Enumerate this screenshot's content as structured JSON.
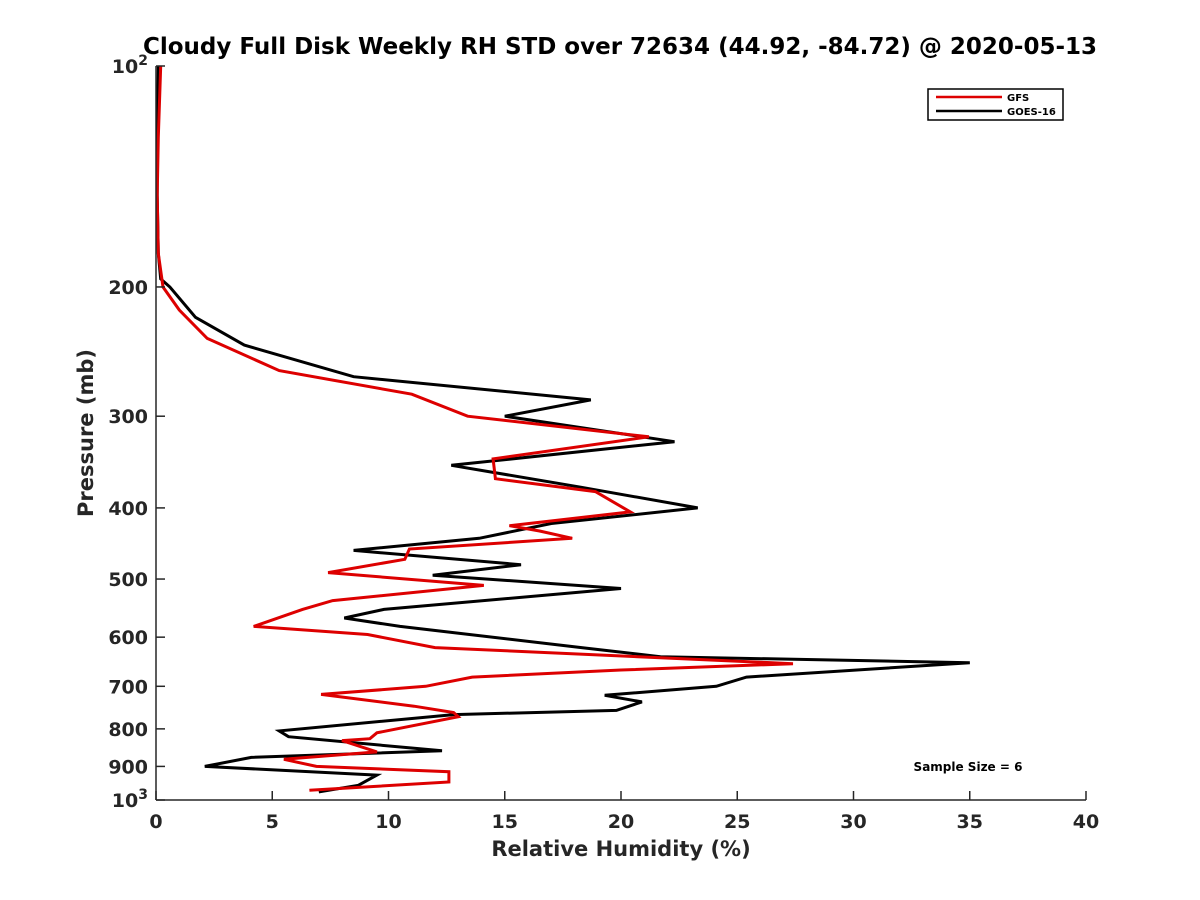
{
  "chart_data": {
    "type": "line",
    "title": "Cloudy Full Disk Weekly RH STD over 72634 (44.92, -84.72) @ 2020-05-13",
    "xlabel": "Relative Humidity (%)",
    "ylabel": "Pressure (mb)",
    "xlim": [
      0,
      40
    ],
    "ylim": [
      100,
      1000
    ],
    "y_scale": "log",
    "y_reversed": true,
    "grid": false,
    "legend_position": "top-right",
    "x_ticks": [
      0,
      5,
      10,
      15,
      20,
      25,
      30,
      35,
      40
    ],
    "y_ticks": [
      {
        "value": 100,
        "base": "10",
        "exp": "2"
      },
      {
        "value": 200,
        "label": "200"
      },
      {
        "value": 300,
        "label": "300"
      },
      {
        "value": 400,
        "label": "400"
      },
      {
        "value": 500,
        "label": "500"
      },
      {
        "value": 600,
        "label": "600"
      },
      {
        "value": 700,
        "label": "700"
      },
      {
        "value": 800,
        "label": "800"
      },
      {
        "value": 900,
        "label": "900"
      },
      {
        "value": 1000,
        "base": "10",
        "exp": "3"
      }
    ],
    "annotation": "Sample Size = 6",
    "series": [
      {
        "name": "GFS",
        "color": "#dd0000",
        "points": [
          [
            0.2,
            100
          ],
          [
            0.1,
            125
          ],
          [
            0.05,
            150
          ],
          [
            0.1,
            180
          ],
          [
            0.3,
            200
          ],
          [
            1.0,
            215
          ],
          [
            2.2,
            235
          ],
          [
            5.3,
            260
          ],
          [
            11.0,
            280
          ],
          [
            13.4,
            300
          ],
          [
            21.2,
            320
          ],
          [
            14.5,
            343
          ],
          [
            14.6,
            365
          ],
          [
            18.9,
            380
          ],
          [
            20.4,
            405
          ],
          [
            15.2,
            423
          ],
          [
            16.5,
            430
          ],
          [
            17.9,
            440
          ],
          [
            10.9,
            455
          ],
          [
            10.7,
            470
          ],
          [
            7.4,
            490
          ],
          [
            14.1,
            510
          ],
          [
            7.6,
            535
          ],
          [
            6.3,
            550
          ],
          [
            4.2,
            580
          ],
          [
            9.1,
            595
          ],
          [
            12.0,
            620
          ],
          [
            27.4,
            652
          ],
          [
            20.0,
            665
          ],
          [
            13.6,
            680
          ],
          [
            11.6,
            700
          ],
          [
            7.1,
            718
          ],
          [
            11.1,
            745
          ],
          [
            12.8,
            760
          ],
          [
            13.0,
            770
          ],
          [
            9.5,
            810
          ],
          [
            9.2,
            825
          ],
          [
            8.0,
            830
          ],
          [
            9.5,
            860
          ],
          [
            5.5,
            880
          ],
          [
            6.9,
            900
          ],
          [
            12.6,
            915
          ],
          [
            12.6,
            945
          ],
          [
            6.6,
            970
          ]
        ]
      },
      {
        "name": "GOES-16",
        "color": "#000000",
        "points": [
          [
            0.1,
            100
          ],
          [
            0.05,
            125
          ],
          [
            0.05,
            150
          ],
          [
            0.1,
            180
          ],
          [
            0.2,
            195
          ],
          [
            0.6,
            200
          ],
          [
            1.7,
            220
          ],
          [
            3.8,
            240
          ],
          [
            8.5,
            265
          ],
          [
            18.7,
            285
          ],
          [
            15.0,
            300
          ],
          [
            22.3,
            325
          ],
          [
            12.7,
            350
          ],
          [
            18.3,
            375
          ],
          [
            23.3,
            400
          ],
          [
            17.0,
            420
          ],
          [
            13.9,
            440
          ],
          [
            8.5,
            457
          ],
          [
            15.7,
            478
          ],
          [
            11.9,
            494
          ],
          [
            20.0,
            515
          ],
          [
            9.8,
            550
          ],
          [
            8.1,
            565
          ],
          [
            10.5,
            580
          ],
          [
            18.3,
            620
          ],
          [
            21.7,
            638
          ],
          [
            35.0,
            650
          ],
          [
            25.4,
            680
          ],
          [
            24.1,
            700
          ],
          [
            19.3,
            720
          ],
          [
            20.9,
            735
          ],
          [
            19.8,
            755
          ],
          [
            12.8,
            765
          ],
          [
            5.3,
            805
          ],
          [
            5.7,
            820
          ],
          [
            12.3,
            857
          ],
          [
            4.1,
            875
          ],
          [
            2.1,
            900
          ],
          [
            9.5,
            925
          ],
          [
            8.7,
            955
          ],
          [
            7.0,
            975
          ]
        ]
      }
    ]
  }
}
